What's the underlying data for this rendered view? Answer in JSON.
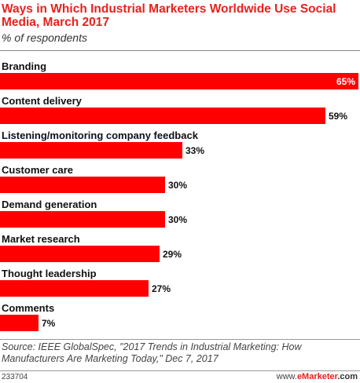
{
  "chart_data": {
    "type": "bar",
    "orientation": "horizontal",
    "title": "Ways in Which Industrial Marketers Worldwide Use Social Media, March 2017",
    "subtitle": "% of respondents",
    "categories": [
      "Branding",
      "Content delivery",
      "Listening/monitoring company feedback",
      "Customer care",
      "Demand generation",
      "Market research",
      "Thought leadership",
      "Comments"
    ],
    "values": [
      65,
      59,
      33,
      30,
      30,
      29,
      27,
      7
    ],
    "value_labels": [
      "65%",
      "59%",
      "33%",
      "30%",
      "30%",
      "29%",
      "27%",
      "7%"
    ],
    "xlim": [
      0,
      65
    ],
    "bar_color": "#ff0000",
    "grid": false,
    "legend": "none"
  },
  "source": "Source: IEEE GlobalSpec, \"2017 Trends in Industrial Marketing: How Manufacturers Are Marketing Today,\" Dec 7, 2017",
  "chart_id": "233704",
  "brand": {
    "prefix": "www.",
    "em": "eMarketer",
    "suffix": ".com"
  },
  "colors": {
    "accent": "#e8211c",
    "bar": "#ff0000",
    "text": "#111111"
  }
}
